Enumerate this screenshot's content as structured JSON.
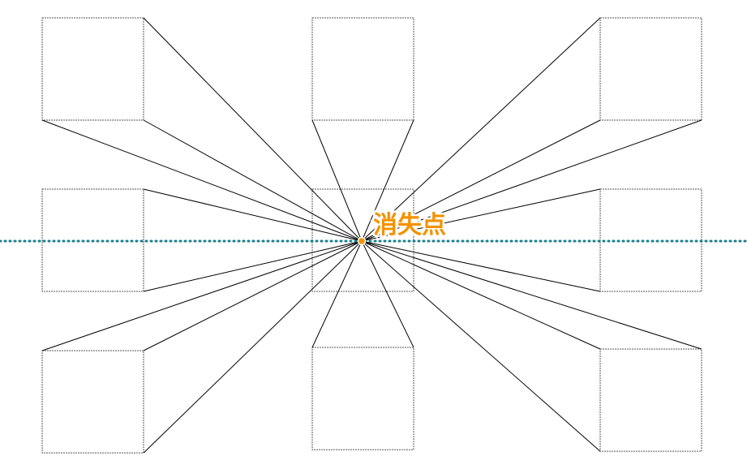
{
  "diagram": {
    "vanishing_point_label": "消失点",
    "colors": {
      "background": "#ffffff",
      "square_outline": "#555555",
      "projection_line": "#000000",
      "horizon_line": "#1a7f8c",
      "vanishing_point": "#f39200",
      "label": "#f39200"
    }
  }
}
